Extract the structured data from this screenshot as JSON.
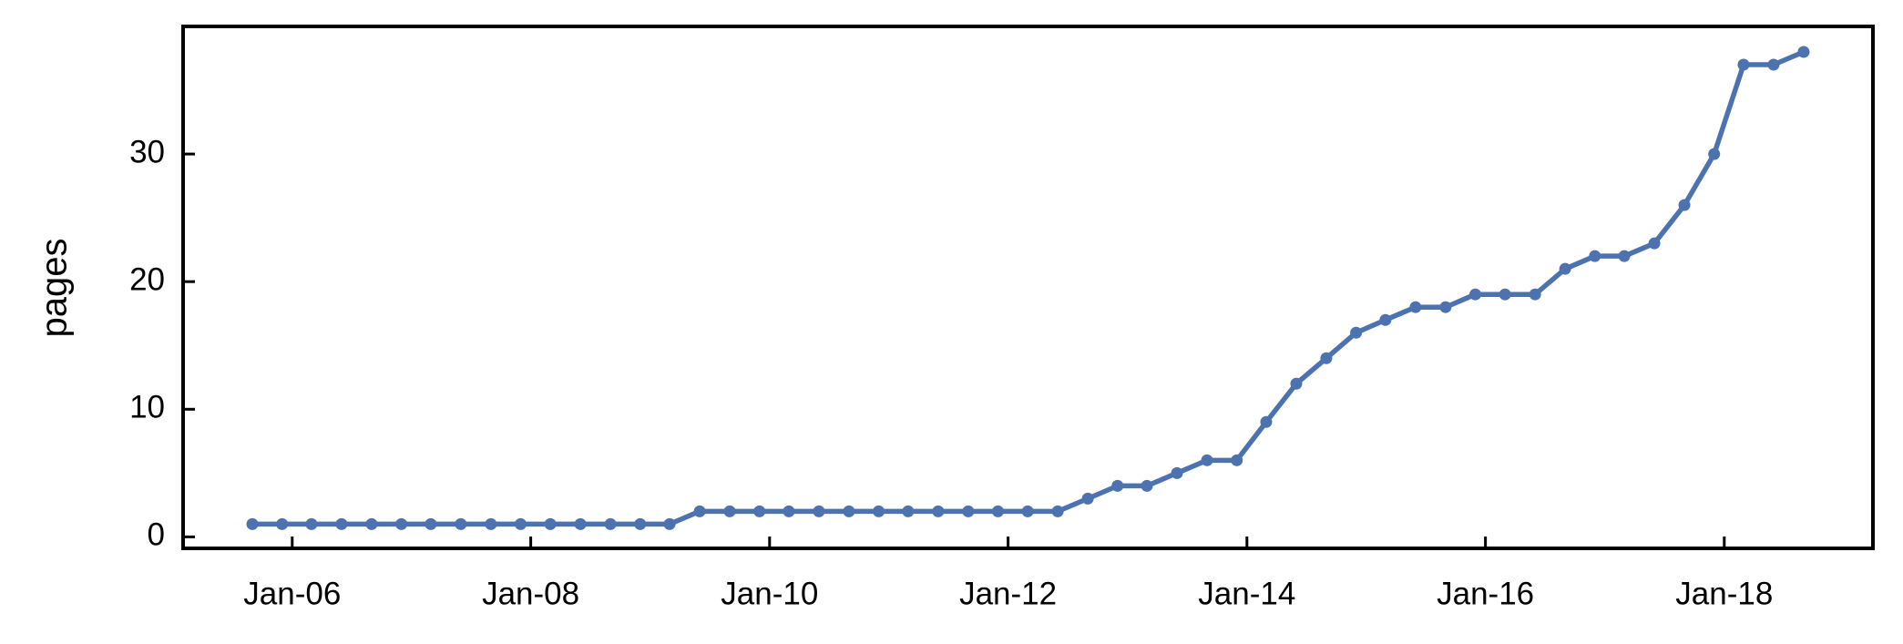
{
  "chart_data": {
    "type": "line",
    "ylabel": "pages",
    "x": [
      "2005-09",
      "2005-12",
      "2006-03",
      "2006-06",
      "2006-09",
      "2006-12",
      "2007-03",
      "2007-06",
      "2007-09",
      "2007-12",
      "2008-03",
      "2008-06",
      "2008-09",
      "2008-12",
      "2009-03",
      "2009-06",
      "2009-09",
      "2009-12",
      "2010-03",
      "2010-06",
      "2010-09",
      "2010-12",
      "2011-03",
      "2011-06",
      "2011-09",
      "2011-12",
      "2012-03",
      "2012-06",
      "2012-09",
      "2012-12",
      "2013-03",
      "2013-06",
      "2013-09",
      "2013-12",
      "2014-03",
      "2014-06",
      "2014-09",
      "2014-12",
      "2015-03",
      "2015-06",
      "2015-09",
      "2015-12",
      "2016-03",
      "2016-06",
      "2016-09",
      "2016-12",
      "2017-03",
      "2017-06",
      "2017-09",
      "2017-12",
      "2018-03",
      "2018-06",
      "2018-09"
    ],
    "values": [
      1,
      1,
      1,
      1,
      1,
      1,
      1,
      1,
      1,
      1,
      1,
      1,
      1,
      1,
      1,
      2,
      2,
      2,
      2,
      2,
      2,
      2,
      2,
      2,
      2,
      2,
      2,
      2,
      3,
      4,
      4,
      5,
      6,
      6,
      9,
      12,
      14,
      16,
      17,
      18,
      18,
      19,
      19,
      19,
      21,
      22,
      22,
      23,
      26,
      30,
      37,
      37,
      38
    ],
    "color": "#4c72b0",
    "xlim": [
      "2005-02",
      "2019-04"
    ],
    "xticks": [
      {
        "value": "2006-01",
        "label": "Jan-06"
      },
      {
        "value": "2008-01",
        "label": "Jan-08"
      },
      {
        "value": "2010-01",
        "label": "Jan-10"
      },
      {
        "value": "2012-01",
        "label": "Jan-12"
      },
      {
        "value": "2014-01",
        "label": "Jan-14"
      },
      {
        "value": "2016-01",
        "label": "Jan-16"
      },
      {
        "value": "2018-01",
        "label": "Jan-18"
      }
    ],
    "ylim": [
      -0.9,
      40
    ],
    "yticks": [
      0,
      10,
      20,
      30
    ]
  }
}
